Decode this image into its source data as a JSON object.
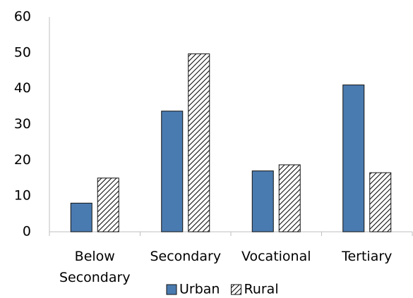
{
  "chart_data": {
    "type": "bar",
    "categories": [
      "Below Secondary",
      "Secondary",
      "Vocational",
      "Tertiary"
    ],
    "series": [
      {
        "name": "Urban",
        "color": "#4a7bb0",
        "values": [
          8,
          33.7,
          17,
          41
        ]
      },
      {
        "name": "Rural",
        "color": "#000000",
        "pattern": "hatch",
        "values": [
          15,
          49.7,
          18.7,
          16.5
        ]
      }
    ],
    "ylim": [
      0,
      60
    ],
    "yticks": [
      0,
      10,
      20,
      30,
      40,
      50,
      60
    ],
    "grid": false,
    "legend": "bottom"
  }
}
